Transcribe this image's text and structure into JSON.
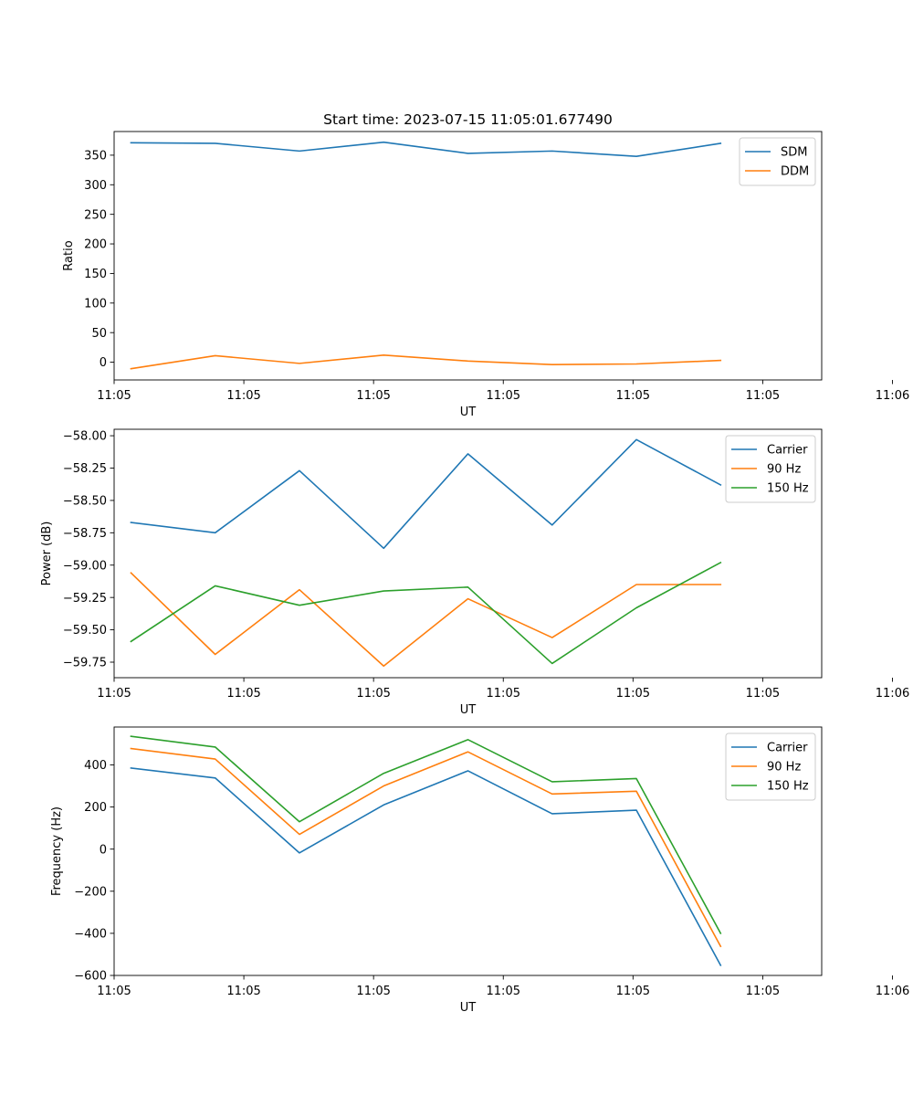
{
  "figure_title": "Start time: 2023-07-15 11:05:01.677490",
  "colors": {
    "c0": "#1f77b4",
    "c1": "#ff7f0e",
    "c2": "#2ca02c"
  },
  "chart_data": [
    {
      "type": "line",
      "title": "Start time: 2023-07-15 11:05:01.677490",
      "xlabel": "UT",
      "ylabel": "Ratio",
      "x": [
        1,
        2,
        3,
        4,
        5,
        6,
        7,
        8
      ],
      "xlim": [
        0.8,
        9.2
      ],
      "xticks": [
        0.8,
        2.34,
        3.88,
        5.42,
        6.96,
        8.5,
        10.04
      ],
      "xtick_labels": [
        "11:05",
        "11:05",
        "11:05",
        "11:05",
        "11:05",
        "11:05",
        "11:06"
      ],
      "ylim": [
        -30,
        390
      ],
      "yticks": [
        0,
        50,
        100,
        150,
        200,
        250,
        300,
        350
      ],
      "ytick_labels": [
        "0",
        "50",
        "100",
        "150",
        "200",
        "250",
        "300",
        "350"
      ],
      "legend": "top-right",
      "series": [
        {
          "name": "SDM",
          "color": "#1f77b4",
          "values": [
            371,
            370,
            357,
            372,
            353,
            357,
            348,
            370
          ]
        },
        {
          "name": "DDM",
          "color": "#ff7f0e",
          "values": [
            -11,
            11,
            -2,
            12,
            2,
            -4,
            -3,
            3
          ]
        }
      ]
    },
    {
      "type": "line",
      "xlabel": "UT",
      "ylabel": "Power (dB)",
      "x": [
        1,
        2,
        3,
        4,
        5,
        6,
        7,
        8
      ],
      "xlim": [
        0.8,
        9.2
      ],
      "xticks": [
        0.8,
        2.34,
        3.88,
        5.42,
        6.96,
        8.5,
        10.04
      ],
      "xtick_labels": [
        "11:05",
        "11:05",
        "11:05",
        "11:05",
        "11:05",
        "11:05",
        "11:06"
      ],
      "ylim": [
        -59.87,
        -57.95
      ],
      "yticks": [
        -59.75,
        -59.5,
        -59.25,
        -59.0,
        -58.75,
        -58.5,
        -58.25,
        -58.0
      ],
      "ytick_labels": [
        "−59.75",
        "−59.50",
        "−59.25",
        "−59.00",
        "−58.75",
        "−58.50",
        "−58.25",
        "−58.00"
      ],
      "legend": "top-right",
      "series": [
        {
          "name": "Carrier",
          "color": "#1f77b4",
          "values": [
            -58.67,
            -58.75,
            -58.27,
            -58.87,
            -58.14,
            -58.69,
            -58.03,
            -58.38
          ]
        },
        {
          "name": "90 Hz",
          "color": "#ff7f0e",
          "values": [
            -59.06,
            -59.69,
            -59.19,
            -59.78,
            -59.26,
            -59.56,
            -59.15,
            -59.15
          ]
        },
        {
          "name": "150 Hz",
          "color": "#2ca02c",
          "values": [
            -59.59,
            -59.16,
            -59.31,
            -59.2,
            -59.17,
            -59.76,
            -59.33,
            -58.98
          ]
        }
      ]
    },
    {
      "type": "line",
      "xlabel": "UT",
      "ylabel": "Frequency (Hz)",
      "x": [
        1,
        2,
        3,
        4,
        5,
        6,
        7,
        8
      ],
      "xlim": [
        0.8,
        9.2
      ],
      "xticks": [
        0.8,
        2.34,
        3.88,
        5.42,
        6.96,
        8.5,
        10.04
      ],
      "xtick_labels": [
        "11:05",
        "11:05",
        "11:05",
        "11:05",
        "11:05",
        "11:05",
        "11:06"
      ],
      "ylim": [
        -600,
        580
      ],
      "yticks": [
        -600,
        -400,
        -200,
        0,
        200,
        400
      ],
      "ytick_labels": [
        "−600",
        "−400",
        "−200",
        "0",
        "200",
        "400"
      ],
      "legend": "top-right",
      "series": [
        {
          "name": "Carrier",
          "color": "#1f77b4",
          "values": [
            385,
            338,
            -18,
            210,
            372,
            168,
            185,
            -552
          ]
        },
        {
          "name": "90 Hz",
          "color": "#ff7f0e",
          "values": [
            478,
            428,
            70,
            300,
            462,
            262,
            275,
            -462
          ]
        },
        {
          "name": "150 Hz",
          "color": "#2ca02c",
          "values": [
            536,
            485,
            130,
            360,
            520,
            320,
            335,
            -400
          ]
        }
      ]
    }
  ]
}
